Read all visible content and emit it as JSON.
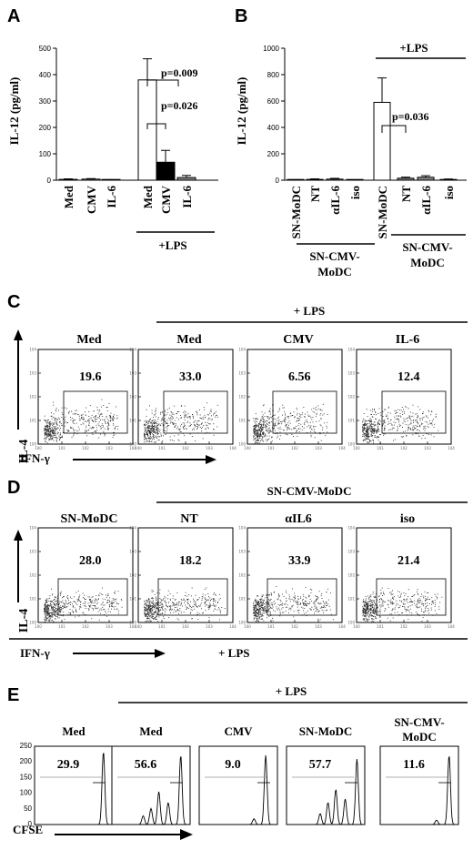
{
  "panels": {
    "A": {
      "label": "A",
      "ylabel": "IL-12 (pg/ml)",
      "yticks": [
        "0",
        "100",
        "200",
        "300",
        "400",
        "500"
      ],
      "categories": [
        "Med",
        "CMV",
        "IL-6",
        "Med",
        "CMV",
        "IL-6"
      ],
      "group_label": "+LPS",
      "p_values": [
        "p=0.009",
        "p=0.026"
      ]
    },
    "B": {
      "label": "B",
      "ylabel": "IL-12 (pg/ml)",
      "yticks": [
        "0",
        "200",
        "400",
        "600",
        "800",
        "1000"
      ],
      "categories": [
        "SN-MoDC",
        "NT",
        "αIL-6",
        "iso",
        "SN-MoDC",
        "NT",
        "αIL-6",
        "iso"
      ],
      "sub_group_label_1": "SN-CMV-",
      "sub_group_label_2": "MoDC",
      "group_label": "+LPS",
      "p_values": [
        "p=0.036"
      ]
    },
    "C": {
      "label": "C",
      "header": "+ LPS",
      "ylabel": "IL-4",
      "xlabel": "IFN-γ",
      "plots": [
        {
          "title": "Med",
          "value": "19.6"
        },
        {
          "title": "Med",
          "value": "33.0"
        },
        {
          "title": "CMV",
          "value": "6.56"
        },
        {
          "title": "IL-6",
          "value": "12.4"
        }
      ]
    },
    "D": {
      "label": "D",
      "header": "SN-CMV-MoDC",
      "ylabel": "IL-4",
      "xlabel": "IFN-γ",
      "footer": "+ LPS",
      "plots": [
        {
          "title": "SN-MoDC",
          "value": "28.0"
        },
        {
          "title": "NT",
          "value": "18.2"
        },
        {
          "title": "αIL6",
          "value": "33.9"
        },
        {
          "title": "iso",
          "value": "21.4"
        }
      ]
    },
    "E": {
      "label": "E",
      "header": "+ LPS",
      "xlabel": "CFSE",
      "yticks": [
        "0",
        "50",
        "100",
        "150",
        "200",
        "250"
      ],
      "plots": [
        {
          "title": "Med",
          "title2": "",
          "value": "29.9"
        },
        {
          "title": "Med",
          "title2": "",
          "value": "56.6"
        },
        {
          "title": "CMV",
          "title2": "",
          "value": "9.0"
        },
        {
          "title": "SN-MoDC",
          "title2": "",
          "value": "57.7"
        },
        {
          "title": "SN-CMV-",
          "title2": "MoDC",
          "value": "11.6"
        }
      ]
    }
  },
  "chart_data": [
    {
      "type": "bar",
      "panel": "A",
      "ylabel": "IL-12 (pg/ml)",
      "ylim": [
        0,
        500
      ],
      "categories": [
        "Med",
        "CMV",
        "IL-6",
        "Med +LPS",
        "CMV +LPS",
        "IL-6 +LPS"
      ],
      "values": [
        3,
        4,
        1,
        380,
        68,
        10
      ],
      "errors": [
        2,
        2,
        1,
        80,
        45,
        8
      ],
      "fills": [
        "#ffffff",
        "#ffffff",
        "#ffffff",
        "#ffffff",
        "#000000",
        "#888888"
      ],
      "annotations": [
        "p=0.009",
        "p=0.026"
      ]
    },
    {
      "type": "bar",
      "panel": "B",
      "ylabel": "IL-12 (pg/ml)",
      "ylim": [
        0,
        1000
      ],
      "categories": [
        "SN-MoDC",
        "NT",
        "αIL-6",
        "iso",
        "SN-MoDC +LPS",
        "NT +LPS",
        "αIL-6 +LPS",
        "iso +LPS"
      ],
      "values": [
        2,
        6,
        8,
        1,
        590,
        15,
        22,
        5
      ],
      "errors": [
        2,
        4,
        6,
        1,
        185,
        8,
        12,
        4
      ],
      "fills": [
        "#ffffff",
        "#ffffff",
        "#ffffff",
        "#ffffff",
        "#ffffff",
        "#888888",
        "#888888",
        "#888888"
      ],
      "annotations": [
        "p=0.036"
      ]
    }
  ]
}
